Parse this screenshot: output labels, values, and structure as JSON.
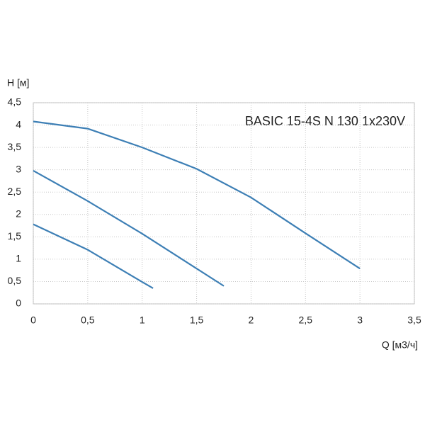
{
  "chart_data": {
    "type": "line",
    "title": "BASIC 15-4S N 130 1x230V",
    "x_label": "Q [м3/ч]",
    "y_label": "H [м]",
    "series": [
      {
        "color": "#3d7fb5",
        "x": [
          0,
          0.5,
          1,
          1.5,
          2,
          2.5,
          3
        ],
        "values": [
          4.08,
          3.92,
          3.5,
          3.02,
          2.38,
          1.58,
          0.79
        ]
      },
      {
        "color": "#3d7fb5",
        "x": [
          0,
          0.5,
          1,
          1.5,
          1.75
        ],
        "values": [
          2.98,
          2.3,
          1.57,
          0.79,
          0.4
        ]
      },
      {
        "color": "#3d7fb5",
        "x": [
          0,
          0.5,
          1,
          1.1
        ],
        "values": [
          1.78,
          1.21,
          0.49,
          0.35
        ]
      }
    ],
    "xlim": [
      0,
      3.5
    ],
    "xticks": [
      0,
      {
        "value": 0.5,
        "label": "0,5"
      },
      1,
      {
        "value": 1.5,
        "label": "1,5"
      },
      2,
      {
        "value": 2.5,
        "label": "2,5"
      },
      3,
      {
        "value": 3.5,
        "label": "3,5"
      }
    ],
    "ylim": [
      0,
      4.5
    ],
    "yticks": [
      0,
      {
        "value": 0.5,
        "label": "0,5"
      },
      1,
      {
        "value": 1.5,
        "label": "1,5"
      },
      2,
      {
        "value": 2.5,
        "label": "2,5"
      },
      3,
      {
        "value": 3.5,
        "label": "3,5"
      },
      4,
      {
        "value": 4.5,
        "label": "4,5"
      }
    ],
    "grid": true
  }
}
